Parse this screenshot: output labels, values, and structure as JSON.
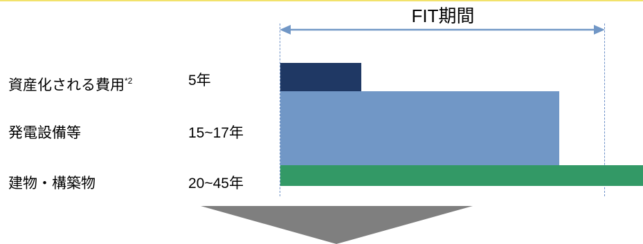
{
  "header": {
    "period_label": "FIT期間"
  },
  "rows": [
    {
      "label": "資産化される費用",
      "footnote": "*2",
      "years": "5年",
      "color": "#1f3864"
    },
    {
      "label": "発電設備等",
      "years": "15~17年",
      "color": "#7197c6"
    },
    {
      "label": "建物・構築物",
      "years": "20~45年",
      "color": "#339966"
    }
  ],
  "colors": {
    "period_arrow": "#7197c6",
    "down_arrow": "#7f7f7f",
    "top_rule": "#f2e26b"
  },
  "icons": {
    "down_arrow": "down-arrow-icon",
    "period_arrow": "double-arrow-icon"
  }
}
